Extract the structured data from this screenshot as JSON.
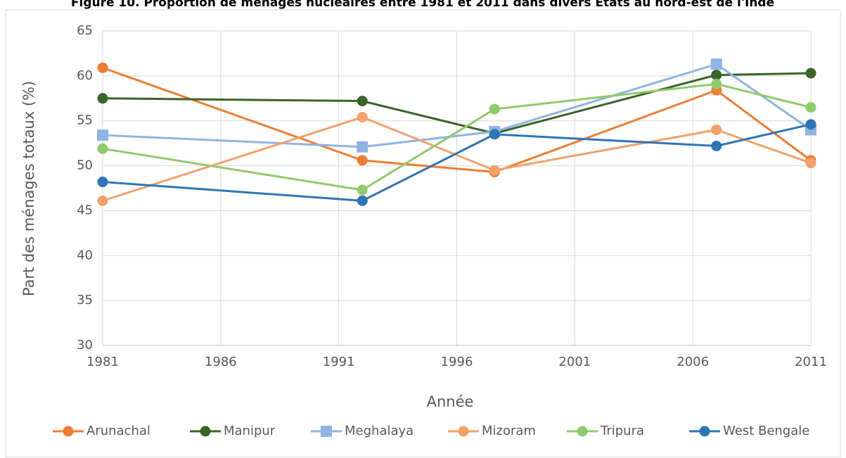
{
  "chart_data": {
    "type": "line",
    "title": "Figure 10. Proportion de ménages nucléaires entre 1981 et 2011 dans divers États au nord-est de l'Inde",
    "x_label": "Année",
    "y_label": "Part des ménages totaux (%)",
    "x": [
      1981,
      1992,
      1997.6,
      2007,
      2011
    ],
    "series": [
      {
        "name": "Arunachal",
        "color": "#ED7D31",
        "marker": "circle",
        "values": [
          60.9,
          50.6,
          49.3,
          58.4,
          50.6
        ]
      },
      {
        "name": "Manipur",
        "color": "#3A6428",
        "marker": "circle",
        "values": [
          57.5,
          57.2,
          53.6,
          60.1,
          60.3
        ]
      },
      {
        "name": "Meghalaya",
        "color": "#8FB4E3",
        "marker": "square",
        "values": [
          53.4,
          52.1,
          53.8,
          61.3,
          54.0
        ]
      },
      {
        "name": "Mizoram",
        "color": "#F4A06A",
        "marker": "circle",
        "values": [
          46.1,
          55.4,
          49.5,
          54.0,
          50.3
        ]
      },
      {
        "name": "Tripura",
        "color": "#8FCB6A",
        "marker": "circle",
        "values": [
          51.9,
          47.3,
          56.3,
          59.1,
          56.5
        ]
      },
      {
        "name": "West Bengale",
        "color": "#2E75B6",
        "marker": "circle",
        "values": [
          48.2,
          46.1,
          53.5,
          52.2,
          54.6
        ]
      }
    ],
    "xlim": [
      1981,
      2011
    ],
    "xticks": [
      1981,
      1986,
      1991,
      1996,
      2001,
      2006,
      2011
    ],
    "ylim": [
      30,
      65
    ],
    "yticks": [
      30,
      35,
      40,
      45,
      50,
      55,
      60,
      65
    ],
    "grid": true,
    "legend": "bottom"
  }
}
